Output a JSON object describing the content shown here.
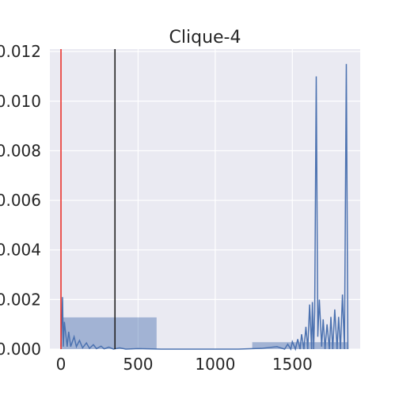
{
  "chart_data": {
    "type": "area",
    "title": "Clique-4",
    "xlabel": "",
    "ylabel": "",
    "xlim": [
      -72,
      1940
    ],
    "ylim": [
      0,
      0.0121
    ],
    "x_ticks": [
      0,
      500,
      1000,
      1500
    ],
    "y_ticks": [
      0.0,
      0.002,
      0.004,
      0.006,
      0.008,
      0.01,
      0.012
    ],
    "x_tick_labels": [
      "0",
      "500",
      "1000",
      "1500"
    ],
    "y_tick_labels": [
      "0.000",
      "0.002",
      "0.004",
      "0.006",
      "0.008",
      "0.010",
      "0.012"
    ],
    "grid": true,
    "background": "#eaeaf2",
    "histogram": {
      "color": "#4c72b0",
      "bins": [
        {
          "x0": 0,
          "x1": 620,
          "density": 0.00128
        },
        {
          "x0": 620,
          "x1": 1240,
          "density": 0.0
        },
        {
          "x0": 1240,
          "x1": 1860,
          "density": 0.00028
        }
      ]
    },
    "kde": {
      "color": "#4c72b0",
      "x": [
        0,
        10,
        15,
        22,
        40,
        50,
        63,
        85,
        100,
        120,
        140,
        165,
        185,
        210,
        230,
        260,
        280,
        310,
        340,
        380,
        420,
        500,
        650,
        800,
        1000,
        1150,
        1300,
        1400,
        1450,
        1470,
        1490,
        1500,
        1520,
        1535,
        1550,
        1560,
        1575,
        1588,
        1600,
        1612,
        1625,
        1630,
        1638,
        1645,
        1655,
        1665,
        1675,
        1690,
        1700,
        1712,
        1725,
        1740,
        1750,
        1762,
        1775,
        1790,
        1800,
        1812,
        1825,
        1838,
        1850,
        1860
      ],
      "y": [
        0.0001,
        0.0021,
        0.0001,
        0.0011,
        0.0001,
        0.0007,
        0.0001,
        0.0005,
        0.0001,
        0.00035,
        5e-05,
        0.00025,
        3e-05,
        0.00018,
        2e-05,
        0.00012,
        1e-05,
        8e-05,
        0.0,
        5e-05,
        0.0,
        2e-05,
        0.0,
        0.0,
        0.0,
        0.0,
        3e-05,
        0.0001,
        0.0,
        0.0002,
        0.0,
        0.0003,
        0.0,
        0.0004,
        0.0,
        0.0006,
        0.0,
        0.0009,
        0.0,
        0.0018,
        0.0,
        0.0019,
        0.0,
        0.0015,
        0.011,
        0.0005,
        0.002,
        0.0001,
        0.0012,
        0.0,
        0.001,
        0.0,
        0.0013,
        0.0,
        0.0016,
        0.0,
        0.0013,
        0.0,
        0.0022,
        0.0,
        0.0115,
        0.0
      ]
    },
    "vlines": [
      {
        "x": 0,
        "color": "#e8302a"
      },
      {
        "x": 350,
        "color": "#222222"
      }
    ]
  }
}
